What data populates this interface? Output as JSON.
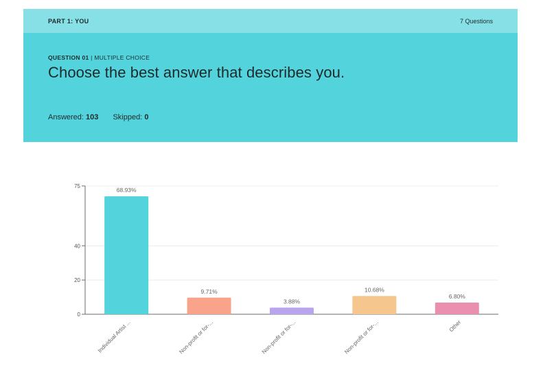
{
  "header": {
    "part_label": "PART 1: YOU",
    "question_count": "7 Questions"
  },
  "question": {
    "number": "QUESTION 01",
    "separator": " | ",
    "type": "MULTIPLE CHOICE",
    "title": "Choose the best answer that describes you.",
    "answered_label": "Answered: ",
    "answered_value": "103",
    "skipped_label": "Skipped: ",
    "skipped_value": "0"
  },
  "colors": {
    "part_bar": "#86e0e6",
    "question_bg": "#53d4dc"
  },
  "chart_data": {
    "type": "bar",
    "categories": [
      "Individual Artist ...",
      "Non-profit or for-...",
      "Non-profit or for-...",
      "Non-profit or for-...",
      "Other"
    ],
    "values": [
      68.93,
      9.71,
      3.88,
      10.68,
      6.8
    ],
    "data_labels": [
      "68.93%",
      "9.71%",
      "3.88%",
      "10.68%",
      "6.80%"
    ],
    "colors": [
      "#53d4dc",
      "#f9a38a",
      "#b9a5ee",
      "#f5c68e",
      "#eb8fb1"
    ],
    "yticks": [
      0,
      20,
      40,
      75
    ],
    "ylim": [
      0,
      75
    ],
    "grid": true,
    "title": "",
    "xlabel": "",
    "ylabel": ""
  }
}
